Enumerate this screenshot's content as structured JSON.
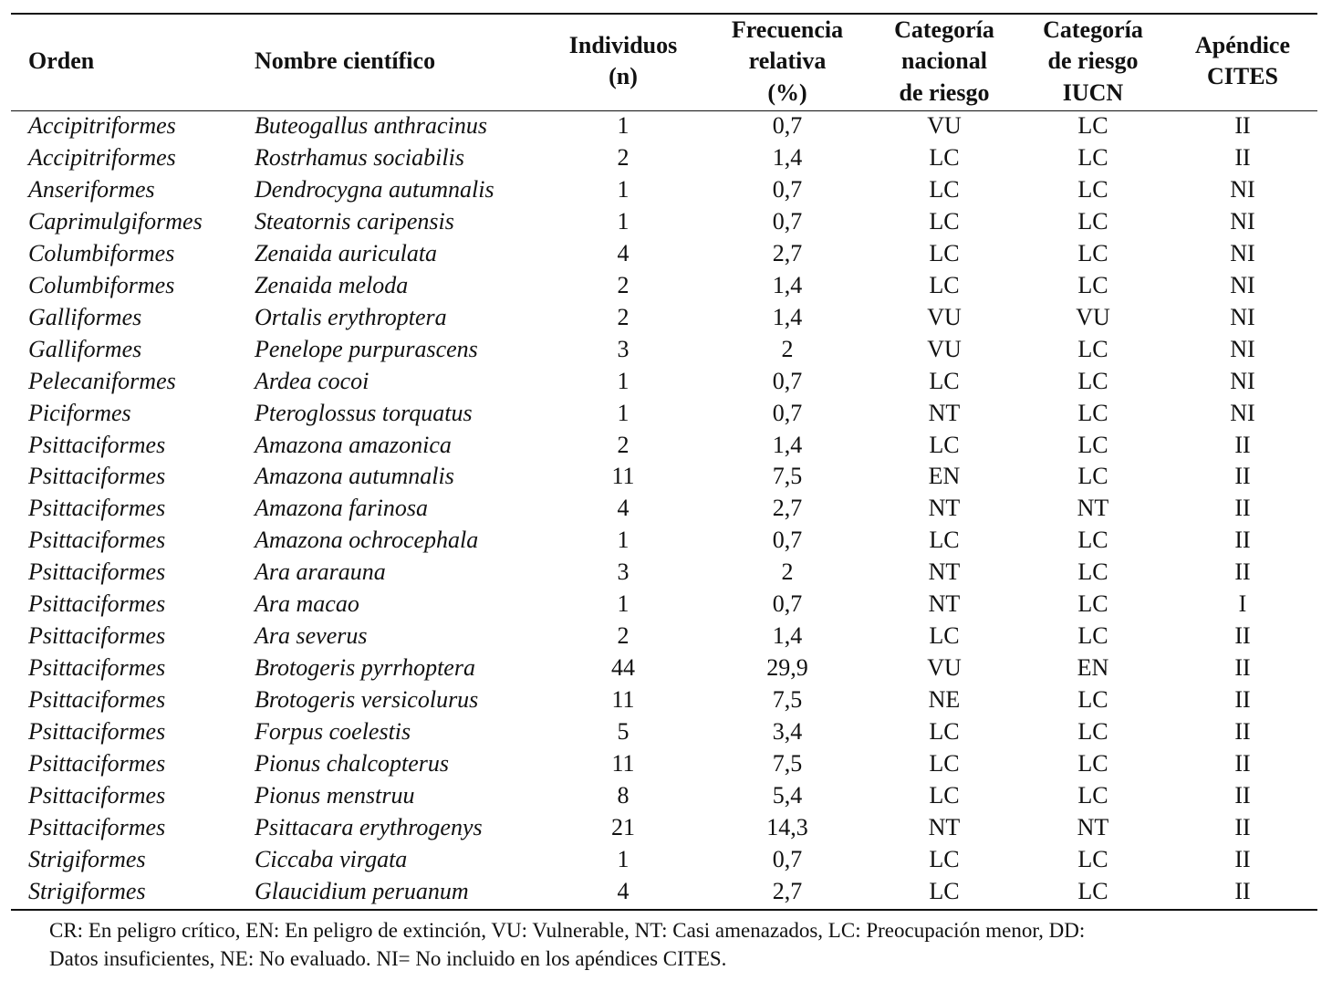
{
  "table": {
    "headers": [
      [
        "Orden"
      ],
      [
        "Nombre científico"
      ],
      [
        "Individuos",
        "(n)"
      ],
      [
        "Frecuencia",
        "relativa",
        "(%)"
      ],
      [
        "Categoría",
        "nacional",
        "de riesgo"
      ],
      [
        "Categoría",
        "de riesgo",
        "IUCN"
      ],
      [
        "Apéndice",
        "CITES"
      ]
    ],
    "rows": [
      [
        "Accipitriformes",
        "Buteogallus anthracinus",
        "1",
        "0,7",
        "VU",
        "LC",
        "II"
      ],
      [
        "Accipitriformes",
        "Rostrhamus sociabilis",
        "2",
        "1,4",
        "LC",
        "LC",
        "II"
      ],
      [
        "Anseriformes",
        "Dendrocygna autumnalis",
        "1",
        "0,7",
        "LC",
        "LC",
        "NI"
      ],
      [
        "Caprimulgiformes",
        "Steatornis caripensis",
        "1",
        "0,7",
        "LC",
        "LC",
        "NI"
      ],
      [
        "Columbiformes",
        "Zenaida auriculata",
        "4",
        "2,7",
        "LC",
        "LC",
        "NI"
      ],
      [
        "Columbiformes",
        "Zenaida meloda",
        "2",
        "1,4",
        "LC",
        "LC",
        "NI"
      ],
      [
        "Galliformes",
        "Ortalis erythroptera",
        "2",
        "1,4",
        "VU",
        "VU",
        "NI"
      ],
      [
        "Galliformes",
        "Penelope purpurascens",
        "3",
        "2",
        "VU",
        "LC",
        "NI"
      ],
      [
        "Pelecaniformes",
        "Ardea cocoi",
        "1",
        "0,7",
        "LC",
        "LC",
        "NI"
      ],
      [
        "Piciformes",
        "Pteroglossus torquatus",
        "1",
        "0,7",
        "NT",
        "LC",
        "NI"
      ],
      [
        "Psittaciformes",
        "Amazona amazonica",
        "2",
        "1,4",
        "LC",
        "LC",
        "II"
      ],
      [
        "Psittaciformes",
        "Amazona autumnalis",
        "11",
        "7,5",
        "EN",
        "LC",
        "II"
      ],
      [
        "Psittaciformes",
        "Amazona farinosa",
        "4",
        "2,7",
        "NT",
        "NT",
        "II"
      ],
      [
        "Psittaciformes",
        "Amazona ochrocephala",
        "1",
        "0,7",
        "LC",
        "LC",
        "II"
      ],
      [
        "Psittaciformes",
        "Ara ararauna",
        "3",
        "2",
        "NT",
        "LC",
        "II"
      ],
      [
        "Psittaciformes",
        "Ara macao",
        "1",
        "0,7",
        "NT",
        "LC",
        "I"
      ],
      [
        "Psittaciformes",
        "Ara severus",
        "2",
        "1,4",
        "LC",
        "LC",
        "II"
      ],
      [
        "Psittaciformes",
        "Brotogeris pyrrhoptera",
        "44",
        "29,9",
        "VU",
        "EN",
        "II"
      ],
      [
        "Psittaciformes",
        "Brotogeris versicolurus",
        "11",
        "7,5",
        "NE",
        "LC",
        "II"
      ],
      [
        "Psittaciformes",
        "Forpus coelestis",
        "5",
        "3,4",
        "LC",
        "LC",
        "II"
      ],
      [
        "Psittaciformes",
        "Pionus chalcopterus",
        "11",
        "7,5",
        "LC",
        "LC",
        "II"
      ],
      [
        "Psittaciformes",
        "Pionus menstruu",
        "8",
        "5,4",
        "LC",
        "LC",
        "II"
      ],
      [
        "Psittaciformes",
        "Psittacara erythrogenys",
        "21",
        "14,3",
        "NT",
        "NT",
        "II"
      ],
      [
        "Strigiformes",
        "Ciccaba virgata",
        "1",
        "0,7",
        "LC",
        "LC",
        "II"
      ],
      [
        "Strigiformes",
        "Glaucidium peruanum",
        "4",
        "2,7",
        "LC",
        "LC",
        "II"
      ]
    ],
    "footnote": [
      "CR: En peligro crítico, EN: En peligro de extinción, VU: Vulnerable, NT: Casi amenazados, LC: Preocupación menor, DD:",
      "Datos insuficientes, NE: No evaluado. NI= No incluido en los apéndices CITES."
    ]
  }
}
